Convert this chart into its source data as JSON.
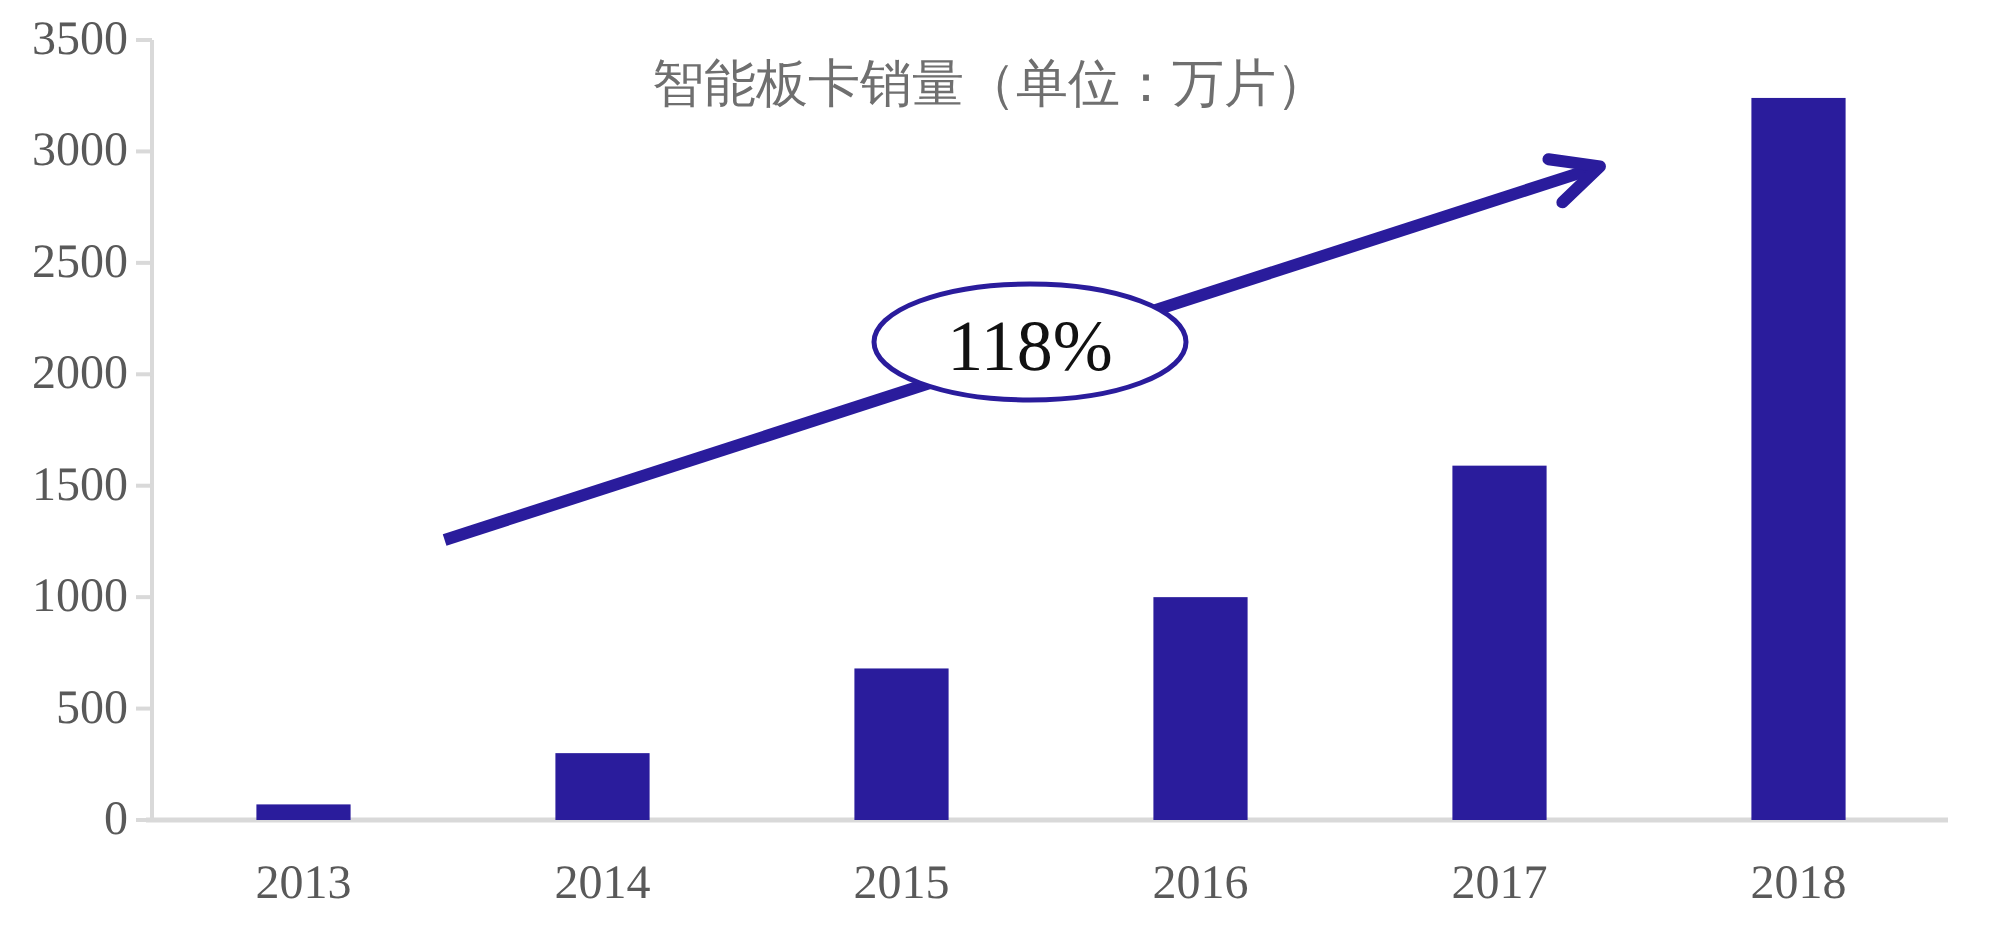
{
  "chart_data": {
    "type": "bar",
    "title": "智能板卡销量（单位：万片）",
    "categories": [
      "2013",
      "2014",
      "2015",
      "2016",
      "2017",
      "2018"
    ],
    "values": [
      70,
      300,
      680,
      1000,
      1590,
      3240
    ],
    "color": "#2a1c9c",
    "ylim": [
      0,
      3500
    ],
    "yticks": [
      0,
      500,
      1000,
      1500,
      2000,
      2500,
      3000,
      3500
    ],
    "annotations": [
      "118%"
    ]
  }
}
